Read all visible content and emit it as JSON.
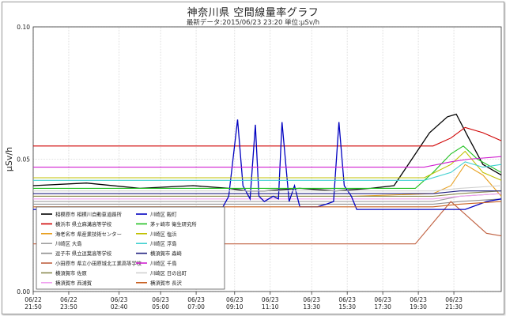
{
  "chart_data": {
    "type": "line",
    "title": "神奈川県 空間線量率グラフ",
    "subtitle": "最新データ:2015/06/23 23:20  単位:μSv/h",
    "ylabel": "μSv/h",
    "ylim": [
      0,
      0.1
    ],
    "yticks": [
      "0.00",
      "0.05",
      "0.10"
    ],
    "xlim": [
      0,
      26.333
    ],
    "xticks": [
      {
        "t": 0,
        "l1": "06/22",
        "l2": "21:50"
      },
      {
        "t": 2,
        "l1": "06/22",
        "l2": "23:50"
      },
      {
        "t": 4.833,
        "l1": "06/23",
        "l2": "02:40"
      },
      {
        "t": 7.167,
        "l1": "06/23",
        "l2": "05:00"
      },
      {
        "t": 9.167,
        "l1": "06/23",
        "l2": "07:00"
      },
      {
        "t": 11.333,
        "l1": "06/23",
        "l2": "09:10"
      },
      {
        "t": 13.333,
        "l1": "06/23",
        "l2": "11:10"
      },
      {
        "t": 15.667,
        "l1": "06/23",
        "l2": "13:30"
      },
      {
        "t": 17.667,
        "l1": "06/23",
        "l2": "15:30"
      },
      {
        "t": 19.667,
        "l1": "06/23",
        "l2": "17:30"
      },
      {
        "t": 21.667,
        "l1": "06/23",
        "l2": "19:30"
      },
      {
        "t": 23.667,
        "l1": "06/23",
        "l2": "21:30"
      }
    ],
    "grid": true,
    "legend": "bottom-left",
    "series": [
      {
        "name": "相模原市 相模川自動車道路所",
        "color": "#000000",
        "pts": [
          [
            0,
            0.04
          ],
          [
            3,
            0.041
          ],
          [
            6,
            0.039
          ],
          [
            9,
            0.04
          ],
          [
            11,
            0.039
          ],
          [
            12,
            0.038
          ],
          [
            13,
            0.038
          ],
          [
            15,
            0.039
          ],
          [
            17,
            0.038
          ],
          [
            19,
            0.039
          ],
          [
            20.3,
            0.04
          ],
          [
            21.3,
            0.05
          ],
          [
            22.3,
            0.06
          ],
          [
            23.3,
            0.066
          ],
          [
            23.8,
            0.067
          ],
          [
            24.5,
            0.058
          ],
          [
            25.3,
            0.048
          ],
          [
            26.333,
            0.044
          ]
        ]
      },
      {
        "name": "横浜市 県立麻溝高等学校",
        "color": "#d00000",
        "pts": [
          [
            0,
            0.055
          ],
          [
            6,
            0.055
          ],
          [
            12,
            0.055
          ],
          [
            18,
            0.055
          ],
          [
            22.5,
            0.055
          ],
          [
            23.5,
            0.058
          ],
          [
            24.3,
            0.062
          ],
          [
            25.3,
            0.06
          ],
          [
            26.333,
            0.057
          ]
        ]
      },
      {
        "name": "海老名市 県産業技術センター",
        "color": "#e8a020",
        "pts": [
          [
            0,
            0.036
          ],
          [
            6,
            0.036
          ],
          [
            12,
            0.036
          ],
          [
            18,
            0.036
          ],
          [
            22.5,
            0.037
          ],
          [
            23.5,
            0.04
          ],
          [
            24.3,
            0.048
          ],
          [
            25.3,
            0.044
          ],
          [
            26.333,
            0.036
          ]
        ]
      },
      {
        "name": "川崎区 大島",
        "color": "#a0a0a0",
        "pts": [
          [
            0,
            0.034
          ],
          [
            6,
            0.034
          ],
          [
            12,
            0.034
          ],
          [
            18,
            0.034
          ],
          [
            22.5,
            0.034
          ],
          [
            24,
            0.036
          ],
          [
            26.333,
            0.037
          ]
        ]
      },
      {
        "name": "逗子市 県立逗葉高等学校",
        "color": "#909090",
        "pts": [
          [
            0,
            0.033
          ],
          [
            6,
            0.033
          ],
          [
            12,
            0.033
          ],
          [
            18,
            0.033
          ],
          [
            22.5,
            0.033
          ],
          [
            24,
            0.034
          ],
          [
            26.333,
            0.035
          ]
        ]
      },
      {
        "name": "小田原市 県立小田原城北工業高等学校",
        "color": "#c06040",
        "pts": [
          [
            0,
            0.018
          ],
          [
            6,
            0.018
          ],
          [
            12,
            0.018
          ],
          [
            18,
            0.018
          ],
          [
            20.5,
            0.018
          ],
          [
            21.5,
            0.018
          ],
          [
            22.5,
            0.026
          ],
          [
            23.5,
            0.034
          ],
          [
            24.5,
            0.028
          ],
          [
            25.5,
            0.022
          ],
          [
            26.333,
            0.021
          ]
        ]
      },
      {
        "name": "横須賀市 佐原",
        "color": "#8a8a50",
        "pts": [
          [
            0,
            0.036
          ],
          [
            6,
            0.036
          ],
          [
            12,
            0.036
          ],
          [
            18,
            0.036
          ],
          [
            22.5,
            0.036
          ],
          [
            24,
            0.037
          ],
          [
            26.333,
            0.038
          ]
        ]
      },
      {
        "name": "横須賀市 西浦賀",
        "color": "#f0a0f0",
        "pts": [
          [
            0,
            0.035
          ],
          [
            6,
            0.035
          ],
          [
            12,
            0.035
          ],
          [
            18,
            0.035
          ],
          [
            22.5,
            0.035
          ],
          [
            24,
            0.036
          ],
          [
            26.333,
            0.037
          ]
        ]
      },
      {
        "name": "川崎区 殿町",
        "color": "#0000c0",
        "pts": [
          [
            0,
            0.031
          ],
          [
            9,
            0.031
          ],
          [
            10.6,
            0.031
          ],
          [
            11,
            0.036
          ],
          [
            11.5,
            0.065
          ],
          [
            11.8,
            0.04
          ],
          [
            12.2,
            0.035
          ],
          [
            12.5,
            0.063
          ],
          [
            12.7,
            0.036
          ],
          [
            13,
            0.034
          ],
          [
            13.5,
            0.036
          ],
          [
            13.8,
            0.035
          ],
          [
            14,
            0.064
          ],
          [
            14.4,
            0.034
          ],
          [
            14.7,
            0.04
          ],
          [
            15,
            0.032
          ],
          [
            16,
            0.032
          ],
          [
            16.5,
            0.033
          ],
          [
            16.9,
            0.034
          ],
          [
            17.2,
            0.064
          ],
          [
            17.5,
            0.04
          ],
          [
            17.9,
            0.036
          ],
          [
            18.2,
            0.031
          ],
          [
            19,
            0.031
          ],
          [
            21,
            0.031
          ],
          [
            22.5,
            0.031
          ],
          [
            24.3,
            0.031
          ],
          [
            25.5,
            0.034
          ],
          [
            26.333,
            0.035
          ]
        ]
      },
      {
        "name": "茅ヶ崎市 衛生研究所",
        "color": "#20c020",
        "pts": [
          [
            0,
            0.039
          ],
          [
            6,
            0.039
          ],
          [
            12,
            0.039
          ],
          [
            18,
            0.039
          ],
          [
            21.5,
            0.039
          ],
          [
            22.5,
            0.045
          ],
          [
            23.5,
            0.052
          ],
          [
            24.2,
            0.055
          ],
          [
            25,
            0.05
          ],
          [
            26.333,
            0.045
          ]
        ]
      },
      {
        "name": "川崎区 塩浜",
        "color": "#c0c000",
        "pts": [
          [
            0,
            0.043
          ],
          [
            6,
            0.043
          ],
          [
            12,
            0.043
          ],
          [
            18,
            0.043
          ],
          [
            22,
            0.043
          ],
          [
            23.5,
            0.048
          ],
          [
            24.3,
            0.053
          ],
          [
            25.3,
            0.045
          ],
          [
            26.333,
            0.042
          ]
        ]
      },
      {
        "name": "川崎区 浮島",
        "color": "#40d0d0",
        "pts": [
          [
            0,
            0.042
          ],
          [
            6,
            0.042
          ],
          [
            12,
            0.042
          ],
          [
            18,
            0.042
          ],
          [
            22,
            0.042
          ],
          [
            23.5,
            0.045
          ],
          [
            24.3,
            0.049
          ],
          [
            25.3,
            0.047
          ],
          [
            26.333,
            0.048
          ]
        ]
      },
      {
        "name": "横須賀市 森崎",
        "color": "#202080",
        "pts": [
          [
            0,
            0.037
          ],
          [
            6,
            0.037
          ],
          [
            12,
            0.037
          ],
          [
            18,
            0.037
          ],
          [
            22.5,
            0.037
          ],
          [
            24,
            0.038
          ],
          [
            26.333,
            0.038
          ]
        ]
      },
      {
        "name": "川崎区 千鳥",
        "color": "#d020d0",
        "pts": [
          [
            0,
            0.047
          ],
          [
            6,
            0.047
          ],
          [
            12,
            0.047
          ],
          [
            18,
            0.047
          ],
          [
            22,
            0.047
          ],
          [
            23.5,
            0.049
          ],
          [
            24.5,
            0.05
          ],
          [
            26.333,
            0.051
          ]
        ]
      },
      {
        "name": "川崎区 日の出町",
        "color": "#d0d0d0",
        "pts": [
          [
            0,
            0.038
          ],
          [
            6,
            0.038
          ],
          [
            12,
            0.038
          ],
          [
            18,
            0.038
          ],
          [
            22.5,
            0.038
          ],
          [
            24,
            0.039
          ],
          [
            26.333,
            0.04
          ]
        ]
      },
      {
        "name": "横須賀市 長沢",
        "color": "#c86020",
        "pts": [
          [
            0,
            0.032
          ],
          [
            6,
            0.032
          ],
          [
            12,
            0.032
          ],
          [
            18,
            0.032
          ],
          [
            22.5,
            0.032
          ],
          [
            24,
            0.033
          ],
          [
            26.333,
            0.034
          ]
        ]
      }
    ]
  }
}
